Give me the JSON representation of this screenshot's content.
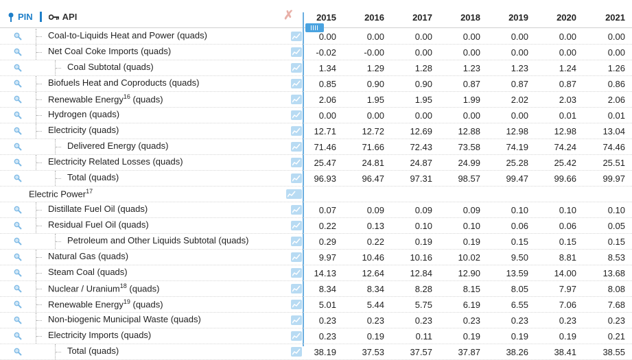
{
  "toolbar": {
    "pin_label": "PIN",
    "api_label": "API",
    "clear_icon": "close-x-icon"
  },
  "columns": [
    "2015",
    "2016",
    "2017",
    "2018",
    "2019",
    "2020",
    "2021"
  ],
  "rows": [
    {
      "label": "Coal-to-Liquids Heat and Power (quads)",
      "indent": 1,
      "values": [
        "0.00",
        "0.00",
        "0.00",
        "0.00",
        "0.00",
        "0.00",
        "0.00"
      ]
    },
    {
      "label": "Net Coal Coke Imports (quads)",
      "indent": 1,
      "values": [
        "-0.02",
        "-0.00",
        "0.00",
        "0.00",
        "0.00",
        "0.00",
        "0.00"
      ]
    },
    {
      "label": "Coal Subtotal (quads)",
      "indent": 2,
      "values": [
        "1.34",
        "1.29",
        "1.28",
        "1.23",
        "1.23",
        "1.24",
        "1.26"
      ]
    },
    {
      "label": "Biofuels Heat and Coproducts (quads)",
      "indent": 1,
      "values": [
        "0.85",
        "0.90",
        "0.90",
        "0.87",
        "0.87",
        "0.87",
        "0.86"
      ]
    },
    {
      "label": "Renewable Energy",
      "sup": "16",
      "suffix": " (quads)",
      "indent": 1,
      "values": [
        "2.06",
        "1.95",
        "1.95",
        "1.99",
        "2.02",
        "2.03",
        "2.06"
      ]
    },
    {
      "label": "Hydrogen (quads)",
      "indent": 1,
      "values": [
        "0.00",
        "0.00",
        "0.00",
        "0.00",
        "0.00",
        "0.01",
        "0.01"
      ]
    },
    {
      "label": "Electricity (quads)",
      "indent": 1,
      "values": [
        "12.71",
        "12.72",
        "12.69",
        "12.88",
        "12.98",
        "12.98",
        "13.04"
      ]
    },
    {
      "label": "Delivered Energy (quads)",
      "indent": 2,
      "values": [
        "71.46",
        "71.66",
        "72.43",
        "73.58",
        "74.19",
        "74.24",
        "74.46"
      ]
    },
    {
      "label": "Electricity Related Losses (quads)",
      "indent": 1,
      "values": [
        "25.47",
        "24.81",
        "24.87",
        "24.99",
        "25.28",
        "25.42",
        "25.51"
      ]
    },
    {
      "label": "Total (quads)",
      "indent": 2,
      "values": [
        "96.93",
        "96.47",
        "97.31",
        "98.57",
        "99.47",
        "99.66",
        "99.97"
      ]
    },
    {
      "label": "Electric Power",
      "sup": "17",
      "suffix": "",
      "indent": 0,
      "group": true,
      "values": []
    },
    {
      "label": "Distillate Fuel Oil (quads)",
      "indent": 1,
      "values": [
        "0.07",
        "0.09",
        "0.09",
        "0.09",
        "0.10",
        "0.10",
        "0.10"
      ]
    },
    {
      "label": "Residual Fuel Oil (quads)",
      "indent": 1,
      "values": [
        "0.22",
        "0.13",
        "0.10",
        "0.10",
        "0.06",
        "0.06",
        "0.05"
      ]
    },
    {
      "label": "Petroleum and Other Liquids Subtotal (quads)",
      "indent": 2,
      "values": [
        "0.29",
        "0.22",
        "0.19",
        "0.19",
        "0.15",
        "0.15",
        "0.15"
      ]
    },
    {
      "label": "Natural Gas (quads)",
      "indent": 1,
      "values": [
        "9.97",
        "10.46",
        "10.16",
        "10.02",
        "9.50",
        "8.81",
        "8.53"
      ]
    },
    {
      "label": "Steam Coal (quads)",
      "indent": 1,
      "values": [
        "14.13",
        "12.64",
        "12.84",
        "12.90",
        "13.59",
        "14.00",
        "13.68"
      ]
    },
    {
      "label": "Nuclear / Uranium",
      "sup": "18",
      "suffix": " (quads)",
      "indent": 1,
      "values": [
        "8.34",
        "8.34",
        "8.28",
        "8.15",
        "8.05",
        "7.97",
        "8.08"
      ]
    },
    {
      "label": "Renewable Energy",
      "sup": "19",
      "suffix": " (quads)",
      "indent": 1,
      "values": [
        "5.01",
        "5.44",
        "5.75",
        "6.19",
        "6.55",
        "7.06",
        "7.68"
      ]
    },
    {
      "label": "Non-biogenic Municipal Waste (quads)",
      "indent": 1,
      "values": [
        "0.23",
        "0.23",
        "0.23",
        "0.23",
        "0.23",
        "0.23",
        "0.23"
      ]
    },
    {
      "label": "Electricity Imports (quads)",
      "indent": 1,
      "values": [
        "0.23",
        "0.19",
        "0.11",
        "0.19",
        "0.19",
        "0.19",
        "0.21"
      ]
    },
    {
      "label": "Total (quads)",
      "indent": 2,
      "values": [
        "38.19",
        "37.53",
        "37.57",
        "37.87",
        "38.26",
        "38.41",
        "38.55"
      ]
    }
  ]
}
